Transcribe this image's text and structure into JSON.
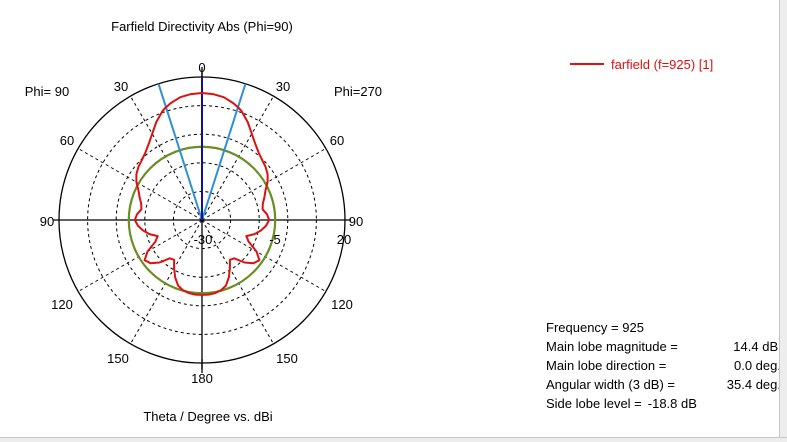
{
  "chart_data": {
    "type": "polar",
    "title": "Farfield Directivity Abs (Phi=90)",
    "xlabel": "Theta / Degree vs. dBi",
    "left_label": "Phi= 90",
    "right_label": "Phi=270",
    "angle_labels_left": [
      "30",
      "60",
      "90",
      "120",
      "150"
    ],
    "angle_labels_right": [
      "30",
      "60",
      "90",
      "120",
      "150"
    ],
    "top_label": "0",
    "bottom_label": "180",
    "radial_ticks": [
      "-30",
      "-5",
      "20"
    ],
    "radial_range_db": [
      -30,
      20
    ],
    "grid": true,
    "legend": {
      "position": "top-right",
      "entry": "farfield (f=925) [1]"
    },
    "colors": {
      "trace": "#dd1111",
      "main_lobe": "#1010a0",
      "beamwidth": "#2e8fd8",
      "sidelobe_circle": "#6b8e23"
    },
    "main_lobe_direction_deg": 0.0,
    "beamwidth_deg": 35.4,
    "sidelobe_level_db": -4.4,
    "series": [
      {
        "theta": [
          0,
          5,
          10,
          15,
          18,
          20,
          25,
          30,
          35,
          40,
          45,
          50,
          55,
          60,
          65,
          70,
          75,
          80,
          85,
          90,
          95,
          100,
          105,
          110,
          115,
          120,
          125,
          130,
          135,
          140,
          145,
          150,
          155,
          160,
          165,
          170,
          175,
          180
        ],
        "db": [
          14.4,
          14.2,
          13.6,
          12.3,
          11.3,
          10.5,
          7.8,
          4.8,
          2.5,
          0.8,
          -0.3,
          -1.0,
          -2.0,
          -3.5,
          -5.5,
          -6.8,
          -8.0,
          -8.5,
          -7.2,
          -6.5,
          -7.5,
          -9.0,
          -11.0,
          -13.5,
          -12.0,
          -8.0,
          -5.5,
          -6.5,
          -9.0,
          -12.5,
          -13.0,
          -10.5,
          -7.8,
          -5.6,
          -4.5,
          -4.0,
          -3.8,
          -3.8
        ]
      }
    ]
  },
  "info": {
    "frequency_label": "Frequency = 925",
    "magnitude_label": "Main lobe magnitude =",
    "magnitude_value": "14.4 dBi",
    "direction_label": "Main lobe direction =",
    "direction_value": "0.0 deg.",
    "width_label": "Angular width (3 dB) =",
    "width_value": "35.4 deg.",
    "sidelobe_label": "Side lobe level =",
    "sidelobe_value": "-18.8 dB"
  }
}
